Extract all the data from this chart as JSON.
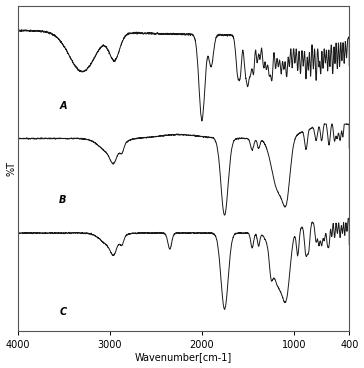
{
  "xlabel": "Wavenumber[cm-1]",
  "ylabel": "%T",
  "xticks": [
    4000,
    3000,
    2000,
    1000,
    400
  ],
  "xticklabels": [
    "4000",
    "3000",
    "2000",
    "1000",
    "400"
  ],
  "bg_color": "#ffffff",
  "line_color": "#1a1a1a",
  "figsize": [
    3.64,
    3.68
  ],
  "dpi": 100,
  "border_color": "#888888"
}
